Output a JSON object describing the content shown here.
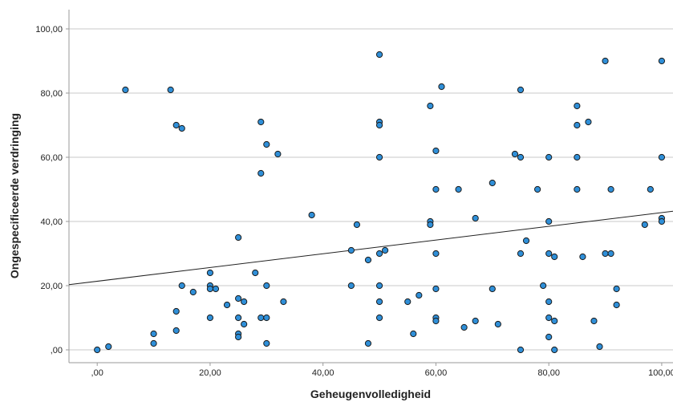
{
  "colors": {
    "point_fill": "#2f8fd8",
    "point_stroke": "#1a1a1a",
    "grid": "#c8c8c8",
    "axis": "#9a9a9a",
    "fit_line": "#222222"
  },
  "chart_data": {
    "type": "scatter",
    "title": "",
    "xlabel": "Geheugenvolledigheid",
    "ylabel": "Ongespecificeerde verdringing",
    "xlim": [
      -5,
      102
    ],
    "ylim": [
      -4,
      106
    ],
    "grid": "horizontal",
    "xticks": [
      {
        "value": 0,
        "label": ",00"
      },
      {
        "value": 20,
        "label": "20,00"
      },
      {
        "value": 40,
        "label": "40,00"
      },
      {
        "value": 60,
        "label": "60,00"
      },
      {
        "value": 80,
        "label": "80,00"
      },
      {
        "value": 100,
        "label": "100,00"
      }
    ],
    "yticks": [
      {
        "value": 0,
        "label": ",00"
      },
      {
        "value": 20,
        "label": "20,00"
      },
      {
        "value": 40,
        "label": "40,00"
      },
      {
        "value": 60,
        "label": "60,00"
      },
      {
        "value": 80,
        "label": "80,00"
      },
      {
        "value": 100,
        "label": "100,00"
      }
    ],
    "fit_line": {
      "x": [
        -5,
        102
      ],
      "y": [
        20.3,
        43.2
      ]
    },
    "points": [
      [
        0,
        0
      ],
      [
        2,
        1
      ],
      [
        5,
        81
      ],
      [
        10,
        2
      ],
      [
        10,
        5
      ],
      [
        13,
        81
      ],
      [
        14,
        70
      ],
      [
        15,
        69
      ],
      [
        14,
        12
      ],
      [
        14,
        6
      ],
      [
        15,
        20
      ],
      [
        17,
        18
      ],
      [
        20,
        24
      ],
      [
        20,
        20
      ],
      [
        20,
        19
      ],
      [
        21,
        19
      ],
      [
        20,
        10
      ],
      [
        23,
        14
      ],
      [
        25,
        35
      ],
      [
        25,
        16
      ],
      [
        25,
        10
      ],
      [
        25,
        5
      ],
      [
        25,
        4
      ],
      [
        26,
        15
      ],
      [
        26,
        8
      ],
      [
        28,
        24
      ],
      [
        29,
        71
      ],
      [
        29,
        55
      ],
      [
        29,
        10
      ],
      [
        30,
        64
      ],
      [
        30,
        20
      ],
      [
        30,
        10
      ],
      [
        30,
        2
      ],
      [
        32,
        61
      ],
      [
        33,
        15
      ],
      [
        38,
        42
      ],
      [
        45,
        31
      ],
      [
        45,
        20
      ],
      [
        46,
        39
      ],
      [
        48,
        28
      ],
      [
        48,
        2
      ],
      [
        50,
        92
      ],
      [
        50,
        71
      ],
      [
        50,
        70
      ],
      [
        50,
        60
      ],
      [
        50,
        30
      ],
      [
        51,
        31
      ],
      [
        50,
        20
      ],
      [
        50,
        15
      ],
      [
        50,
        10
      ],
      [
        55,
        15
      ],
      [
        56,
        5
      ],
      [
        57,
        17
      ],
      [
        59,
        76
      ],
      [
        59,
        40
      ],
      [
        59,
        39
      ],
      [
        60,
        62
      ],
      [
        60,
        50
      ],
      [
        60,
        30
      ],
      [
        60,
        19
      ],
      [
        60,
        10
      ],
      [
        60,
        9
      ],
      [
        61,
        82
      ],
      [
        64,
        50
      ],
      [
        65,
        7
      ],
      [
        67,
        41
      ],
      [
        67,
        9
      ],
      [
        70,
        52
      ],
      [
        70,
        19
      ],
      [
        71,
        8
      ],
      [
        74,
        61
      ],
      [
        75,
        81
      ],
      [
        75,
        60
      ],
      [
        75,
        30
      ],
      [
        75,
        0
      ],
      [
        76,
        34
      ],
      [
        78,
        50
      ],
      [
        79,
        20
      ],
      [
        80,
        60
      ],
      [
        80,
        40
      ],
      [
        80,
        30
      ],
      [
        81,
        29
      ],
      [
        80,
        15
      ],
      [
        80,
        10
      ],
      [
        81,
        9
      ],
      [
        80,
        4
      ],
      [
        81,
        0
      ],
      [
        85,
        76
      ],
      [
        85,
        70
      ],
      [
        85,
        60
      ],
      [
        85,
        50
      ],
      [
        86,
        29
      ],
      [
        87,
        71
      ],
      [
        88,
        9
      ],
      [
        89,
        1
      ],
      [
        90,
        90
      ],
      [
        90,
        30
      ],
      [
        91,
        50
      ],
      [
        91,
        30
      ],
      [
        92,
        19
      ],
      [
        92,
        14
      ],
      [
        97,
        39
      ],
      [
        98,
        50
      ],
      [
        100,
        90
      ],
      [
        100,
        60
      ],
      [
        100,
        41
      ],
      [
        100,
        40
      ]
    ]
  }
}
